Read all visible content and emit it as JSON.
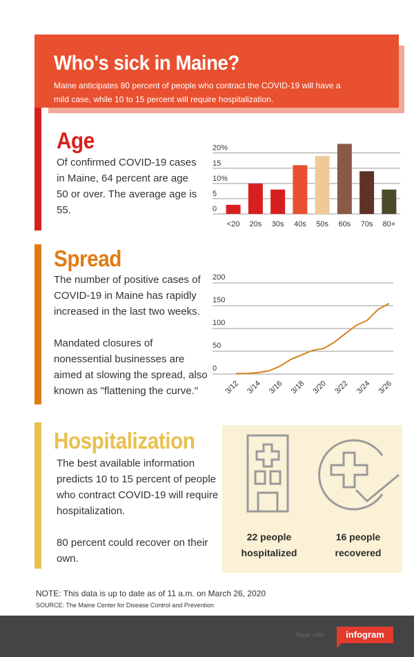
{
  "header": {
    "title": "Who's sick in Maine?",
    "subtitle": "Maine anticipates 80 percent of people who contract the COVID-19 will have a mild case, while 10 to 15 percent will require hospitalization."
  },
  "age": {
    "title": "Age",
    "body": "Of confirmed COVID-19 cases in Maine, 64 percent are age 50 or over. The average age is 55."
  },
  "spread": {
    "title": "Spread",
    "body1": "The number of positive cases of COVID-19 in Maine has rapidly increased in the last two weeks.",
    "body2": "Mandated closures of nonessential businesses are aimed at slowing the spread, also known as \"flattening the curve.\""
  },
  "hospitalization": {
    "title": "Hospitalization",
    "body1": "The best available information predicts 10 to 15 percent of people who contract COVID-19 will require hospitalization.",
    "body2": "80 percent could recover on their own.",
    "stat_hospitalized_line1": "22 people",
    "stat_hospitalized_line2": "hospitalized",
    "stat_recovered_line1": "16 people",
    "stat_recovered_line2": "recovered",
    "icons": [
      "hospital-building-icon",
      "recovered-check-icon"
    ]
  },
  "note": "NOTE: This data is up to date as of 11 a.m. on March 26, 2020",
  "source": "SOURCE: The Maine Center for Disease Control and Prevention",
  "footer": {
    "made_with": "Made with",
    "brand": "infogram"
  },
  "colors": {
    "header": "#e8502f",
    "age_accent": "#d81f1f",
    "spread_accent": "#e07b12",
    "hosp_accent": "#e8c050",
    "hosp_box": "#faf1d6",
    "line": "#d4821e"
  },
  "chart_data": [
    {
      "type": "bar",
      "categories": [
        "<20",
        "20s",
        "30s",
        "40s",
        "50s",
        "60s",
        "70s",
        "80+"
      ],
      "values": [
        3,
        10,
        8,
        16,
        19,
        23,
        14,
        8
      ],
      "colors": [
        "#d81f1f",
        "#d81f1f",
        "#d81f1f",
        "#e8502f",
        "#f0c99a",
        "#8a5a48",
        "#5e3325",
        "#4d4a2a"
      ],
      "yticks": [
        "0",
        "5",
        "10%",
        "15",
        "20%"
      ],
      "ylim": [
        0,
        24
      ],
      "grid": true
    },
    {
      "type": "line",
      "x_labels": [
        "3/12",
        "3/14",
        "3/16",
        "3/18",
        "3/20",
        "3/22",
        "3/24",
        "3/26"
      ],
      "yticks": [
        "0",
        "50",
        "100",
        "150",
        "200"
      ],
      "ylim": [
        0,
        200
      ],
      "x_index": [
        0,
        1,
        2,
        3,
        4,
        5,
        6,
        7,
        8,
        9,
        10,
        11,
        12,
        13,
        14
      ],
      "values": [
        1,
        1,
        3,
        7,
        17,
        32,
        42,
        52,
        56,
        70,
        89,
        107,
        118,
        142,
        155
      ],
      "grid": true
    }
  ]
}
